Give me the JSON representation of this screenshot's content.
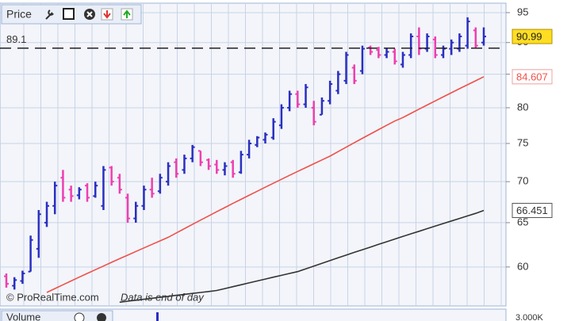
{
  "panel": {
    "title": "Price",
    "watermark": "© ProRealTime.com",
    "note": "Data is end of day"
  },
  "volume_panel": {
    "title": "Volume",
    "tick": "3.000K"
  },
  "chart_data": {
    "type": "ohlc",
    "log_scale": true,
    "grid": true,
    "ylim": [
      56,
      96.5
    ],
    "yticks": [
      60,
      65,
      70,
      75,
      80,
      85,
      90,
      95
    ],
    "up_color": "#2a2fc0",
    "down_color": "#ee3fb0",
    "open": [
      59,
      58,
      58.5,
      59.5,
      62,
      65,
      67,
      70.5,
      69,
      68.3,
      69.5,
      68.2,
      67,
      71.8,
      70.5,
      68,
      65.5,
      67,
      69,
      68.8,
      70,
      72.5,
      71.5,
      73,
      74,
      72.8,
      72.2,
      71.5,
      72.5,
      71.2,
      73.5,
      74.8,
      75.5,
      75.8,
      77.5,
      80,
      82,
      80.5,
      80,
      79,
      81,
      82.5,
      84,
      86,
      85.5,
      89.2,
      88.8,
      88,
      88.5,
      86.5,
      88,
      91,
      89,
      90.5,
      88,
      89,
      89,
      89.5,
      92,
      90
    ],
    "high": [
      59.3,
      58.9,
      59.6,
      63.5,
      66.5,
      67.5,
      70,
      71.5,
      69.5,
      69.3,
      69.8,
      70,
      72,
      72,
      71,
      68.5,
      67.5,
      69.5,
      70.5,
      71,
      72.5,
      73,
      73.5,
      74.8,
      74,
      73,
      72.8,
      72.5,
      72.8,
      74,
      75.5,
      76,
      76.5,
      78.5,
      80.5,
      82.5,
      82.5,
      83.5,
      81,
      81.5,
      84,
      85.5,
      88.5,
      86.5,
      89.5,
      89.5,
      89.3,
      89,
      89,
      88.5,
      91.5,
      92.5,
      91.5,
      91,
      89.5,
      90.5,
      91.5,
      94.2,
      92.5,
      92.5
    ],
    "low": [
      57.8,
      57.6,
      58.2,
      59.5,
      61,
      64.5,
      66,
      67.5,
      67.5,
      67.8,
      67.5,
      68,
      66.5,
      69.5,
      68.5,
      65,
      65,
      66.5,
      68,
      68.5,
      69.5,
      70.5,
      71,
      72.5,
      72,
      71.5,
      71,
      70.8,
      70.5,
      71,
      73,
      74.5,
      75,
      75.5,
      77,
      79.5,
      80,
      80,
      77.5,
      79,
      80.5,
      82,
      83.5,
      83.5,
      85,
      88,
      87.5,
      87.5,
      86.5,
      86,
      87.5,
      88,
      88.5,
      87.5,
      87.5,
      88,
      88.5,
      89,
      89,
      89.5
    ],
    "close": [
      58.2,
      58.6,
      59.3,
      63,
      66,
      67,
      69.5,
      68,
      68.2,
      69,
      68,
      69.5,
      71.5,
      70,
      69,
      65.5,
      67,
      69,
      68.5,
      70.5,
      72,
      71,
      73,
      74.5,
      72.5,
      72,
      71.5,
      72,
      71,
      73.5,
      75,
      75.8,
      76.2,
      78,
      80,
      82,
      80.5,
      83,
      78,
      81,
      83.5,
      85,
      88,
      84,
      89,
      88.5,
      88,
      88.5,
      87,
      88,
      91,
      89,
      91,
      88,
      89,
      90,
      91,
      93.5,
      89.5,
      90.99
    ],
    "lines": [
      {
        "color": "#f0504a",
        "values": [
          null,
          null,
          null,
          null,
          null,
          57.3,
          57.7,
          58.1,
          58.5,
          58.9,
          59.3,
          59.7,
          60.1,
          60.5,
          60.9,
          61.3,
          61.7,
          62.1,
          62.5,
          62.9,
          63.3,
          63.8,
          64.3,
          64.8,
          65.3,
          65.8,
          66.3,
          66.8,
          67.3,
          67.8,
          68.3,
          68.8,
          69.3,
          69.8,
          70.3,
          70.8,
          71.3,
          71.8,
          72.3,
          72.8,
          73.3,
          73.9,
          74.5,
          75.1,
          75.7,
          76.3,
          76.9,
          77.5,
          78.1,
          78.6,
          79.2,
          79.8,
          80.4,
          81,
          81.6,
          82.2,
          82.8,
          83.4,
          84,
          84.607
        ]
      },
      {
        "color": "#333333",
        "values": [
          null,
          null,
          null,
          null,
          null,
          null,
          null,
          null,
          null,
          null,
          null,
          null,
          null,
          null,
          56.3,
          56.4,
          56.5,
          56.6,
          56.7,
          56.8,
          56.9,
          57.0,
          57.1,
          57.2,
          57.3,
          57.4,
          57.5,
          57.7,
          57.9,
          58.1,
          58.3,
          58.5,
          58.7,
          58.9,
          59.1,
          59.3,
          59.5,
          59.8,
          60.1,
          60.4,
          60.7,
          61.0,
          61.3,
          61.6,
          61.9,
          62.2,
          62.5,
          62.8,
          63.1,
          63.4,
          63.7,
          64.0,
          64.3,
          64.6,
          64.9,
          65.2,
          65.5,
          65.8,
          66.1,
          66.451
        ]
      }
    ],
    "reference_line": {
      "value": 89.1,
      "color": "#222222"
    }
  }
}
